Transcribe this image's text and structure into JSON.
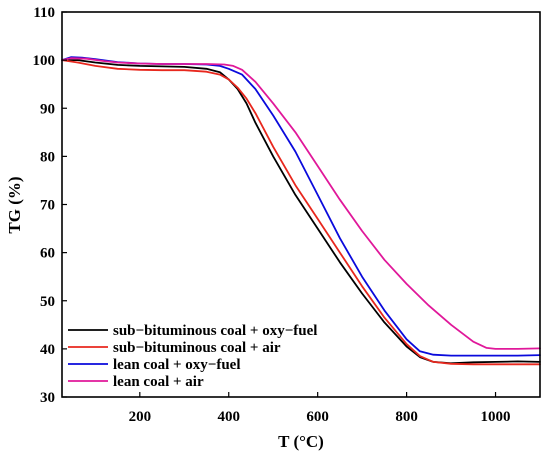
{
  "chart_data": {
    "type": "line",
    "xlabel": "T (°C)",
    "ylabel": "TG (%)",
    "xlim": [
      25,
      1100
    ],
    "ylim": [
      30,
      110
    ],
    "xticks": [
      200,
      400,
      600,
      800,
      1000
    ],
    "yticks": [
      30,
      40,
      50,
      60,
      70,
      80,
      90,
      100,
      110
    ],
    "legend_position": "bottom-left",
    "grid": false,
    "series": [
      {
        "name": "sub−bituminous coal + oxy−fuel",
        "color": "#000000",
        "points": [
          [
            25,
            100
          ],
          [
            60,
            100
          ],
          [
            100,
            99.5
          ],
          [
            150,
            99
          ],
          [
            200,
            98.8
          ],
          [
            250,
            98.7
          ],
          [
            300,
            98.6
          ],
          [
            350,
            98.2
          ],
          [
            380,
            97.5
          ],
          [
            400,
            96
          ],
          [
            420,
            94
          ],
          [
            440,
            91
          ],
          [
            460,
            87
          ],
          [
            500,
            80
          ],
          [
            550,
            72
          ],
          [
            600,
            65
          ],
          [
            650,
            58
          ],
          [
            700,
            51.5
          ],
          [
            750,
            45.5
          ],
          [
            800,
            40.5
          ],
          [
            830,
            38.3
          ],
          [
            860,
            37.3
          ],
          [
            900,
            37
          ],
          [
            950,
            37.2
          ],
          [
            1000,
            37.3
          ],
          [
            1050,
            37.4
          ],
          [
            1100,
            37.3
          ]
        ]
      },
      {
        "name": "sub−bituminous coal + air",
        "color": "#e8281e",
        "points": [
          [
            25,
            100
          ],
          [
            60,
            99.5
          ],
          [
            100,
            98.8
          ],
          [
            150,
            98.2
          ],
          [
            200,
            98
          ],
          [
            250,
            97.9
          ],
          [
            300,
            97.9
          ],
          [
            350,
            97.6
          ],
          [
            380,
            97
          ],
          [
            400,
            96
          ],
          [
            420,
            94.3
          ],
          [
            440,
            92
          ],
          [
            460,
            89
          ],
          [
            500,
            82
          ],
          [
            550,
            74
          ],
          [
            600,
            67
          ],
          [
            650,
            60
          ],
          [
            700,
            53
          ],
          [
            750,
            46.5
          ],
          [
            800,
            41
          ],
          [
            830,
            38.5
          ],
          [
            860,
            37.3
          ],
          [
            900,
            36.9
          ],
          [
            950,
            36.8
          ],
          [
            1000,
            36.8
          ],
          [
            1050,
            36.8
          ],
          [
            1100,
            36.8
          ]
        ]
      },
      {
        "name": "lean coal + oxy−fuel",
        "color": "#0a0adc",
        "points": [
          [
            25,
            100
          ],
          [
            45,
            100.6
          ],
          [
            70,
            100.5
          ],
          [
            100,
            100.2
          ],
          [
            150,
            99.6
          ],
          [
            200,
            99.3
          ],
          [
            250,
            99.2
          ],
          [
            300,
            99.2
          ],
          [
            350,
            99.1
          ],
          [
            380,
            98.8
          ],
          [
            400,
            98.2
          ],
          [
            430,
            97
          ],
          [
            460,
            94
          ],
          [
            500,
            88.5
          ],
          [
            550,
            81
          ],
          [
            600,
            72
          ],
          [
            650,
            63
          ],
          [
            700,
            55
          ],
          [
            750,
            48
          ],
          [
            800,
            42
          ],
          [
            830,
            39.5
          ],
          [
            860,
            38.8
          ],
          [
            900,
            38.6
          ],
          [
            950,
            38.6
          ],
          [
            1000,
            38.6
          ],
          [
            1050,
            38.6
          ],
          [
            1100,
            38.7
          ]
        ]
      },
      {
        "name": "lean coal + air",
        "color": "#e0189a",
        "points": [
          [
            25,
            100
          ],
          [
            45,
            100.4
          ],
          [
            80,
            100.3
          ],
          [
            120,
            99.8
          ],
          [
            150,
            99.5
          ],
          [
            200,
            99.3
          ],
          [
            250,
            99.2
          ],
          [
            300,
            99.2
          ],
          [
            350,
            99.2
          ],
          [
            390,
            99.1
          ],
          [
            410,
            98.8
          ],
          [
            430,
            98
          ],
          [
            460,
            95.5
          ],
          [
            500,
            91
          ],
          [
            550,
            85
          ],
          [
            600,
            78
          ],
          [
            650,
            71
          ],
          [
            700,
            64.5
          ],
          [
            750,
            58.5
          ],
          [
            800,
            53.5
          ],
          [
            850,
            49
          ],
          [
            900,
            45
          ],
          [
            950,
            41.5
          ],
          [
            980,
            40.2
          ],
          [
            1000,
            40
          ],
          [
            1050,
            40
          ],
          [
            1100,
            40.1
          ]
        ]
      }
    ]
  }
}
